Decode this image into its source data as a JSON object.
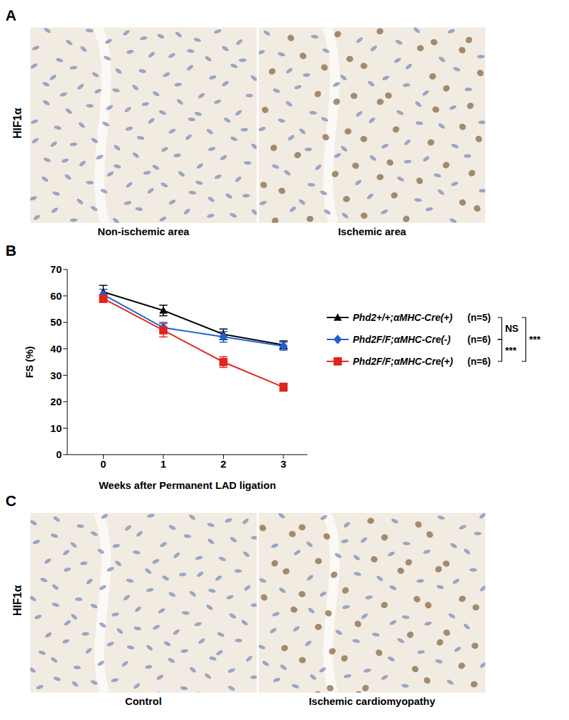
{
  "panels": {
    "A": {
      "label": "A",
      "stain": "HIF1α",
      "images": [
        "Non-ischemic area",
        "Ischemic area"
      ]
    },
    "C": {
      "label": "C",
      "stain": "HIF1α",
      "images": [
        "Control",
        "Ischemic cardiomyopathy"
      ]
    }
  },
  "chart_data": {
    "type": "line",
    "panel_label": "B",
    "x_label": "Weeks after Permanent LAD ligation",
    "y_label": "FS (%)",
    "x": [
      0,
      1,
      2,
      3
    ],
    "xlim": [
      -0.6,
      3.4
    ],
    "xticks": [
      0,
      1,
      2,
      3
    ],
    "ylim": [
      0,
      70
    ],
    "yticks": [
      0,
      10,
      20,
      30,
      40,
      50,
      60,
      70
    ],
    "grid": false,
    "series": [
      {
        "name": "Phd2+/+;αMHC-Cre(+)",
        "n_label": "(n=5)",
        "color": "#000000",
        "marker": "triangle",
        "values": [
          61.5,
          54.5,
          45.5,
          41.5
        ],
        "errors": [
          2.5,
          2,
          2,
          1.5
        ]
      },
      {
        "name": "Phd2F/F;αMHC-Cre(-)",
        "n_label": "(n=6)",
        "color": "#1f5fd6",
        "marker": "diamond",
        "values": [
          60.5,
          48,
          44.5,
          41
        ],
        "errors": [
          2,
          2,
          2,
          1.5
        ]
      },
      {
        "name": "Phd2F/F;αMHC-Cre(+)",
        "n_label": "(n=6)",
        "color": "#e0261b",
        "marker": "square",
        "values": [
          59,
          47,
          35,
          25.5
        ],
        "errors": [
          1.5,
          2.5,
          2,
          1.5
        ]
      }
    ],
    "comparisons": [
      {
        "between": [
          0,
          1
        ],
        "label": "NS"
      },
      {
        "between": [
          1,
          2
        ],
        "label": "***"
      },
      {
        "between": [
          0,
          2
        ],
        "label": "***"
      }
    ]
  }
}
